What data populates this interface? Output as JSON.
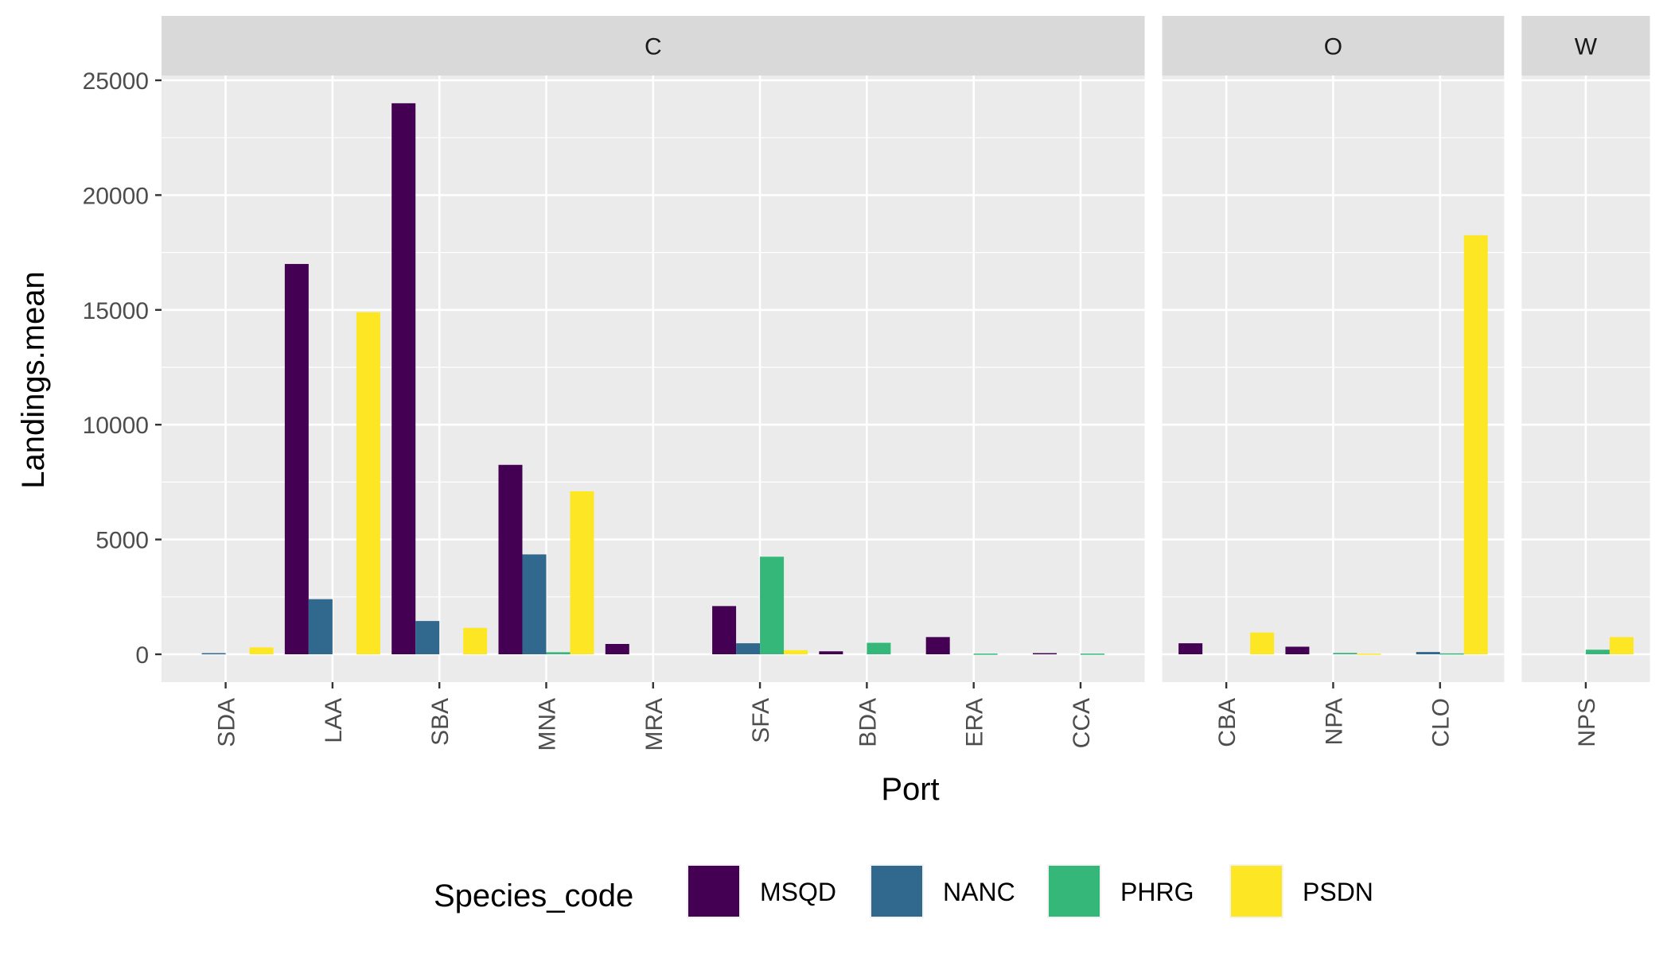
{
  "chart_data": {
    "type": "bar",
    "ylabel": "Landings.mean",
    "xlabel": "Port",
    "ylim": [
      -1100,
      27000
    ],
    "yticks": [
      0,
      5000,
      10000,
      15000,
      20000,
      25000
    ],
    "yticklabels": [
      "0",
      "5000",
      "10000",
      "15000",
      "20000",
      "25000"
    ],
    "legend": {
      "title": "Species_code",
      "position": "bottom"
    },
    "series": [
      {
        "name": "MSQD",
        "color": "#440154"
      },
      {
        "name": "NANC",
        "color": "#31688E"
      },
      {
        "name": "PHRG",
        "color": "#35B779"
      },
      {
        "name": "PSDN",
        "color": "#FDE725"
      }
    ],
    "panels": [
      {
        "label": "C",
        "ports": [
          {
            "name": "SDA",
            "values": [
              0,
              50,
              0,
              300
            ]
          },
          {
            "name": "LAA",
            "values": [
              17000,
              2400,
              0,
              14900
            ]
          },
          {
            "name": "SBA",
            "values": [
              24000,
              1450,
              0,
              1150
            ]
          },
          {
            "name": "MNA",
            "values": [
              8250,
              4350,
              90,
              7100
            ]
          },
          {
            "name": "MRA",
            "values": [
              450,
              0,
              0,
              0
            ]
          },
          {
            "name": "SFA",
            "values": [
              2100,
              480,
              4250,
              180
            ]
          },
          {
            "name": "BDA",
            "values": [
              130,
              0,
              500,
              0
            ]
          },
          {
            "name": "ERA",
            "values": [
              750,
              0,
              30,
              0
            ]
          },
          {
            "name": "CCA",
            "values": [
              50,
              0,
              30,
              0
            ]
          }
        ]
      },
      {
        "label": "O",
        "ports": [
          {
            "name": "CBA",
            "values": [
              480,
              0,
              0,
              950
            ]
          },
          {
            "name": "NPA",
            "values": [
              330,
              0,
              60,
              30
            ]
          },
          {
            "name": "CLO",
            "values": [
              0,
              100,
              40,
              18250
            ]
          }
        ]
      },
      {
        "label": "W",
        "ports": [
          {
            "name": "NPS",
            "values": [
              0,
              0,
              200,
              750
            ]
          }
        ]
      }
    ]
  }
}
